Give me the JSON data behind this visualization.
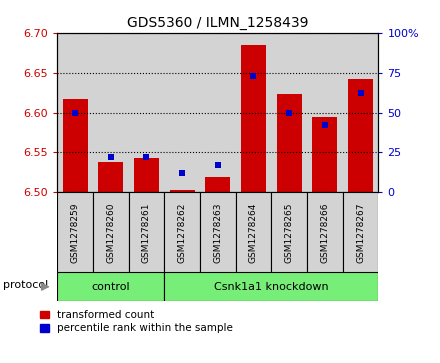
{
  "title": "GDS5360 / ILMN_1258439",
  "samples": [
    "GSM1278259",
    "GSM1278260",
    "GSM1278261",
    "GSM1278262",
    "GSM1278263",
    "GSM1278264",
    "GSM1278265",
    "GSM1278266",
    "GSM1278267"
  ],
  "red_values": [
    6.617,
    6.538,
    6.543,
    6.503,
    6.519,
    6.685,
    6.623,
    6.594,
    6.642
  ],
  "blue_percentiles": [
    50,
    22,
    22,
    12,
    17,
    73,
    50,
    42,
    62
  ],
  "ylim_left": [
    6.5,
    6.7
  ],
  "ylim_right": [
    0,
    100
  ],
  "yticks_left": [
    6.5,
    6.55,
    6.6,
    6.65,
    6.7
  ],
  "yticks_right": [
    0,
    25,
    50,
    75,
    100
  ],
  "ytick_labels_right": [
    "0",
    "25",
    "50",
    "75",
    "100%"
  ],
  "control_count": 3,
  "knockdown_count": 6,
  "control_label": "control",
  "knockdown_label": "Csnk1a1 knockdown",
  "protocol_label": "protocol",
  "legend_red": "transformed count",
  "legend_blue": "percentile rank within the sample",
  "red_color": "#cc0000",
  "blue_color": "#0000cc",
  "group_bg_color": "#77ee77",
  "bar_bg_color": "#d3d3d3",
  "baseline": 6.5,
  "bar_width": 0.7,
  "blue_marker_size": 5,
  "figsize": [
    4.4,
    3.63
  ],
  "dpi": 100
}
